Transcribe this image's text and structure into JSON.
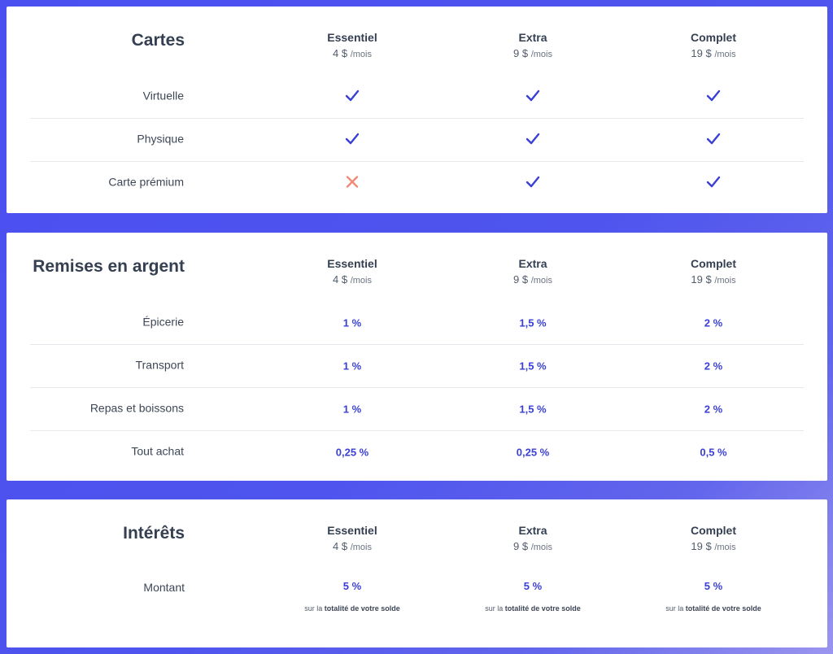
{
  "plans": [
    {
      "name": "Essentiel",
      "price": "4 $",
      "period": "/mois"
    },
    {
      "name": "Extra",
      "price": "9 $",
      "period": "/mois"
    },
    {
      "name": "Complet",
      "price": "19 $",
      "period": "/mois"
    }
  ],
  "cartes": {
    "title": "Cartes",
    "rows": [
      {
        "label": "Virtuelle",
        "values": [
          "check",
          "check",
          "check"
        ]
      },
      {
        "label": "Physique",
        "values": [
          "check",
          "check",
          "check"
        ]
      },
      {
        "label": "Carte prémium",
        "values": [
          "cross",
          "check",
          "check"
        ]
      }
    ]
  },
  "remises": {
    "title": "Remises en argent",
    "rows": [
      {
        "label": "Épicerie",
        "values": [
          "1 %",
          "1,5 %",
          "2 %"
        ]
      },
      {
        "label": "Transport",
        "values": [
          "1 %",
          "1,5 %",
          "2 %"
        ]
      },
      {
        "label": "Repas et boissons",
        "values": [
          "1 %",
          "1,5 %",
          "2 %"
        ]
      },
      {
        "label": "Tout achat",
        "values": [
          "0,25 %",
          "0,25 %",
          "0,5 %"
        ]
      }
    ]
  },
  "interets": {
    "title": "Intérêts",
    "row": {
      "label": "Montant",
      "values": [
        "5 %",
        "5 %",
        "5 %"
      ],
      "note_prefix": "sur la",
      "note_bold": "totalité de votre solde"
    }
  },
  "colors": {
    "accent": "#3a3fd6",
    "check": "#3a3fd6",
    "cross": "#f08a78",
    "background": "#4a4ff0"
  },
  "icons": {
    "check": "check-icon",
    "cross": "cross-icon"
  }
}
